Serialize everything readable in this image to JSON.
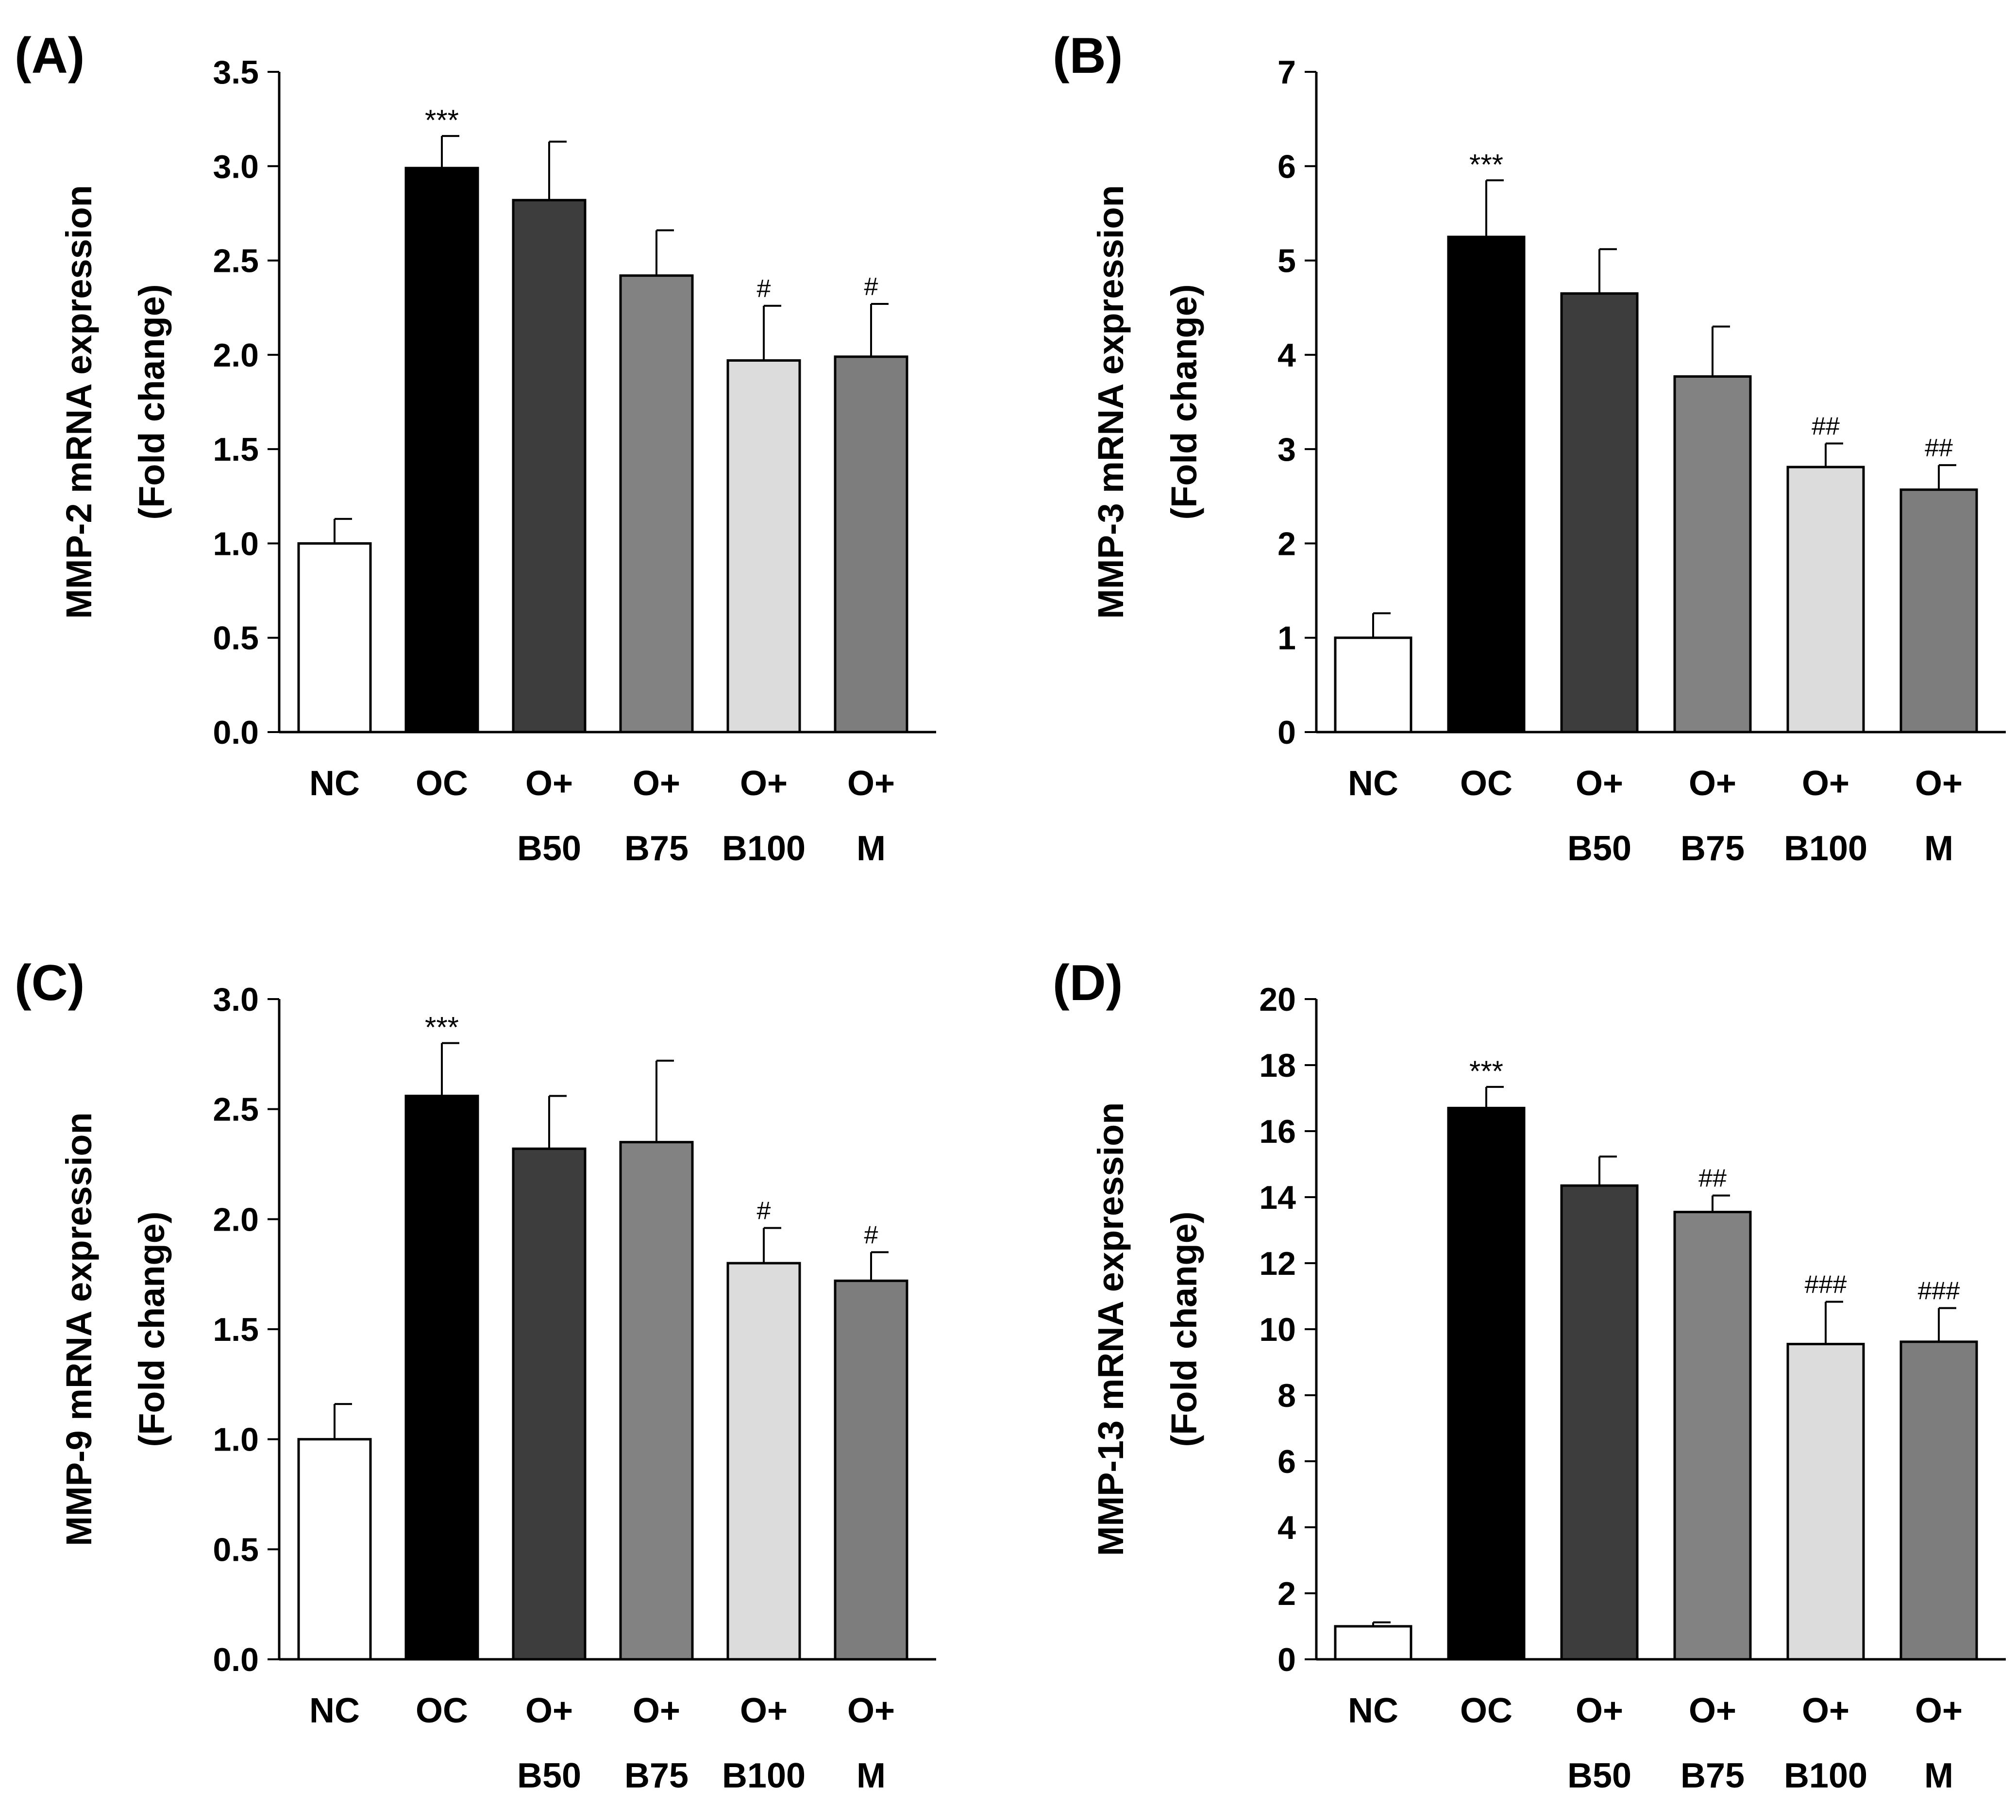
{
  "chart_data": [
    {
      "panel_label": "(A)",
      "type": "bar",
      "ylabel_line1": "MMP-2 mRNA expression",
      "ylabel_line2": "(Fold change)",
      "ylim": [
        0,
        3.5
      ],
      "yticks": [
        0,
        0.5,
        1,
        1.5,
        2,
        2.5,
        3,
        3.5
      ],
      "ytick_labels": [
        "0.0",
        "0.5",
        "1.0",
        "1.5",
        "2.0",
        "2.5",
        "3.0",
        "3.5"
      ],
      "categories_line1": [
        "NC",
        "OC",
        "O+",
        "O+",
        "O+",
        "O+"
      ],
      "categories_line2": [
        "",
        "",
        "B50",
        "B75",
        "B100",
        "M"
      ],
      "values": [
        1.0,
        2.99,
        2.82,
        2.42,
        1.97,
        1.99
      ],
      "errors": [
        0.13,
        0.17,
        0.31,
        0.24,
        0.29,
        0.28
      ],
      "significance": [
        "",
        "***",
        "",
        "",
        "#",
        "#"
      ],
      "bar_colors": [
        "#ffffff",
        "#000000",
        "#3d3d3d",
        "#828282",
        "#dcdcdc",
        "#7d7d7d"
      ]
    },
    {
      "panel_label": "(B)",
      "type": "bar",
      "ylabel_line1": "MMP-3 mRNA expression",
      "ylabel_line2": "(Fold change)",
      "ylim": [
        0,
        7
      ],
      "yticks": [
        0,
        1,
        2,
        3,
        4,
        5,
        6,
        7
      ],
      "ytick_labels": [
        "0",
        "1",
        "2",
        "3",
        "4",
        "5",
        "6",
        "7"
      ],
      "categories_line1": [
        "NC",
        "OC",
        "O+",
        "O+",
        "O+",
        "O+"
      ],
      "categories_line2": [
        "",
        "",
        "B50",
        "B75",
        "B100",
        "M"
      ],
      "values": [
        1.0,
        5.25,
        4.65,
        3.77,
        2.81,
        2.57
      ],
      "errors": [
        0.26,
        0.6,
        0.47,
        0.53,
        0.25,
        0.26
      ],
      "significance": [
        "",
        "***",
        "",
        "",
        "##",
        "##"
      ],
      "bar_colors": [
        "#ffffff",
        "#000000",
        "#3d3d3d",
        "#828282",
        "#dcdcdc",
        "#7d7d7d"
      ]
    },
    {
      "panel_label": "(C)",
      "type": "bar",
      "ylabel_line1": "MMP-9 mRNA expression",
      "ylabel_line2": "(Fold change)",
      "ylim": [
        0,
        3.0
      ],
      "yticks": [
        0,
        0.5,
        1,
        1.5,
        2,
        2.5,
        3
      ],
      "ytick_labels": [
        "0.0",
        "0.5",
        "1.0",
        "1.5",
        "2.0",
        "2.5",
        "3.0"
      ],
      "categories_line1": [
        "NC",
        "OC",
        "O+",
        "O+",
        "O+",
        "O+"
      ],
      "categories_line2": [
        "",
        "",
        "B50",
        "B75",
        "B100",
        "M"
      ],
      "values": [
        1.0,
        2.56,
        2.32,
        2.35,
        1.8,
        1.72
      ],
      "errors": [
        0.16,
        0.24,
        0.24,
        0.37,
        0.16,
        0.13
      ],
      "significance": [
        "",
        "***",
        "",
        "",
        "#",
        "#"
      ],
      "bar_colors": [
        "#ffffff",
        "#000000",
        "#3d3d3d",
        "#828282",
        "#dcdcdc",
        "#7d7d7d"
      ]
    },
    {
      "panel_label": "(D)",
      "type": "bar",
      "ylabel_line1": "MMP-13 mRNA expression",
      "ylabel_line2": "(Fold change)",
      "ylim": [
        0,
        20
      ],
      "yticks": [
        0,
        2,
        4,
        6,
        8,
        10,
        12,
        14,
        16,
        18,
        20
      ],
      "ytick_labels": [
        "0",
        "2",
        "4",
        "6",
        "8",
        "10",
        "12",
        "14",
        "16",
        "18",
        "20"
      ],
      "categories_line1": [
        "NC",
        "OC",
        "O+",
        "O+",
        "O+",
        "O+"
      ],
      "categories_line2": [
        "",
        "",
        "B50",
        "B75",
        "B100",
        "M"
      ],
      "values": [
        1.0,
        16.7,
        14.35,
        13.55,
        9.55,
        9.62
      ],
      "errors": [
        0.12,
        0.64,
        0.88,
        0.5,
        1.28,
        1.02
      ],
      "significance": [
        "",
        "***",
        "",
        "##",
        "###",
        "###"
      ],
      "bar_colors": [
        "#ffffff",
        "#000000",
        "#3d3d3d",
        "#828282",
        "#dcdcdc",
        "#7d7d7d"
      ]
    }
  ]
}
